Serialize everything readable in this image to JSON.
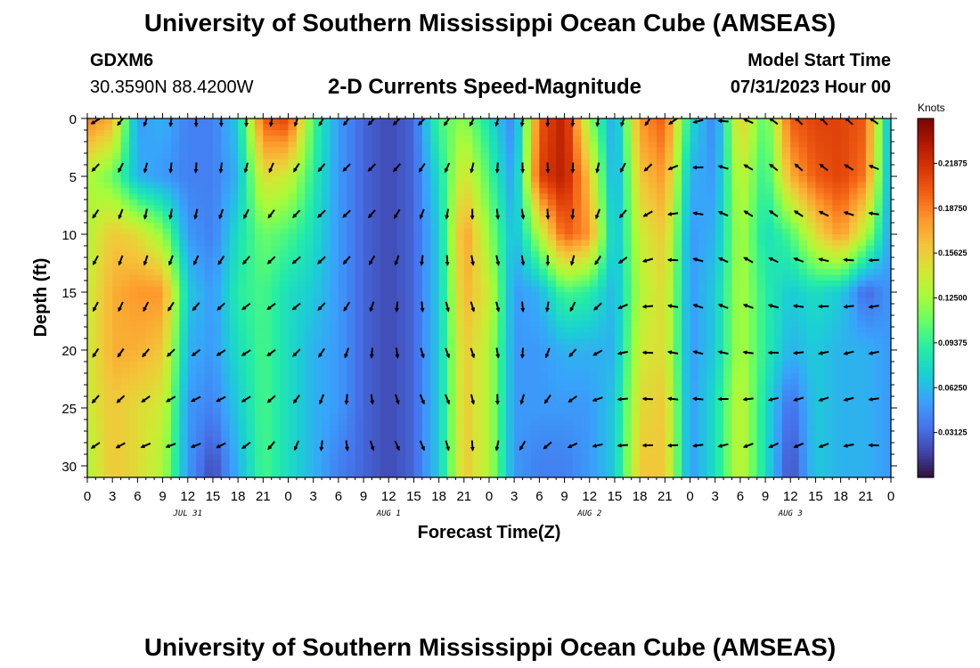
{
  "header": {
    "title": "University of Southern Mississippi Ocean Cube (AMSEAS)",
    "station_id": "GDXM6",
    "station_coords": "30.3590N  88.4200W",
    "chart_title": "2-D Currents Speed-Magnitude",
    "model_start_label": "Model Start Time",
    "model_start_value": "07/31/2023 Hour 00"
  },
  "footer": {
    "title": "University of Southern Mississippi Ocean Cube (AMSEAS)"
  },
  "chart_data": {
    "type": "heatmap",
    "title": "2-D Currents Speed-Magnitude",
    "xlabel": "Forecast Time(Z)",
    "ylabel": "Depth (ft)",
    "x_tick_labels": [
      "0",
      "3",
      "6",
      "9",
      "12",
      "15",
      "18",
      "21",
      "0",
      "3",
      "6",
      "9",
      "12",
      "15",
      "18",
      "21",
      "0",
      "3",
      "6",
      "9",
      "12",
      "15",
      "18",
      "21",
      "0",
      "3",
      "6",
      "9",
      "12",
      "15",
      "18",
      "21",
      "0"
    ],
    "date_labels": [
      {
        "text": "JUL 31",
        "hour": 12
      },
      {
        "text": "AUG 1",
        "hour": 36
      },
      {
        "text": "AUG 2",
        "hour": 60
      },
      {
        "text": "AUG 3",
        "hour": 84
      }
    ],
    "xlim": [
      0,
      96
    ],
    "y_ticks": [
      "0",
      "5",
      "10",
      "15",
      "20",
      "25",
      "30"
    ],
    "ylim": [
      0,
      31
    ],
    "colorbar_label": "Knots",
    "colorbar_ticks": [
      "0.21875",
      "0.18750",
      "0.15625",
      "0.12500",
      "0.09375",
      "0.06250",
      "0.03125"
    ],
    "colorbar_tick_values": [
      0.21875,
      0.1875,
      0.15625,
      0.125,
      0.09375,
      0.0625,
      0.03125
    ],
    "colorbar_range": [
      0,
      0.25
    ],
    "colors": [
      "#30123b",
      "#4145ab",
      "#4675ed",
      "#39a2fc",
      "#1bcfd4",
      "#24eca6",
      "#61fc6c",
      "#a4fc3b",
      "#d1e834",
      "#f3c63a",
      "#fe9b2d",
      "#f36315",
      "#d93806",
      "#b11901",
      "#7a0403"
    ],
    "speed_field": {
      "hours": [
        0,
        3,
        6,
        9,
        12,
        15,
        18,
        21,
        24,
        27,
        30,
        33,
        36,
        39,
        42,
        45,
        48,
        51,
        54,
        57,
        60,
        63,
        66,
        69,
        72,
        75,
        78,
        81,
        84,
        87,
        90,
        93,
        96
      ],
      "depths": [
        0,
        5,
        10,
        15,
        20,
        25,
        30
      ],
      "values": [
        [
          0.19,
          0.17,
          0.05,
          0.06,
          0.04,
          0.04,
          0.07,
          0.2,
          0.21,
          0.1,
          0.05,
          0.03,
          0.02,
          0.03,
          0.1,
          0.12,
          0.08,
          0.04,
          0.2,
          0.23,
          0.12,
          0.05,
          0.18,
          0.2,
          0.08,
          0.04,
          0.16,
          0.1,
          0.2,
          0.21,
          0.21,
          0.2,
          0.05
        ],
        [
          0.13,
          0.11,
          0.06,
          0.05,
          0.04,
          0.04,
          0.06,
          0.15,
          0.14,
          0.09,
          0.05,
          0.03,
          0.02,
          0.03,
          0.08,
          0.15,
          0.1,
          0.05,
          0.21,
          0.23,
          0.16,
          0.05,
          0.16,
          0.18,
          0.06,
          0.05,
          0.14,
          0.09,
          0.17,
          0.2,
          0.21,
          0.19,
          0.05
        ],
        [
          0.13,
          0.16,
          0.15,
          0.12,
          0.05,
          0.04,
          0.08,
          0.11,
          0.1,
          0.08,
          0.05,
          0.03,
          0.02,
          0.03,
          0.07,
          0.18,
          0.12,
          0.06,
          0.13,
          0.2,
          0.18,
          0.06,
          0.14,
          0.16,
          0.05,
          0.06,
          0.13,
          0.08,
          0.1,
          0.15,
          0.18,
          0.13,
          0.05
        ],
        [
          0.14,
          0.17,
          0.18,
          0.18,
          0.07,
          0.05,
          0.09,
          0.1,
          0.08,
          0.07,
          0.05,
          0.03,
          0.02,
          0.03,
          0.07,
          0.17,
          0.14,
          0.05,
          0.06,
          0.1,
          0.09,
          0.06,
          0.13,
          0.15,
          0.05,
          0.07,
          0.13,
          0.09,
          0.07,
          0.08,
          0.07,
          0.03,
          0.05
        ],
        [
          0.14,
          0.17,
          0.17,
          0.16,
          0.06,
          0.05,
          0.08,
          0.1,
          0.08,
          0.06,
          0.05,
          0.03,
          0.02,
          0.03,
          0.07,
          0.16,
          0.13,
          0.05,
          0.05,
          0.06,
          0.06,
          0.06,
          0.14,
          0.15,
          0.05,
          0.07,
          0.13,
          0.09,
          0.06,
          0.07,
          0.06,
          0.06,
          0.05
        ],
        [
          0.14,
          0.16,
          0.15,
          0.14,
          0.05,
          0.04,
          0.07,
          0.1,
          0.08,
          0.06,
          0.05,
          0.03,
          0.02,
          0.03,
          0.07,
          0.16,
          0.13,
          0.05,
          0.05,
          0.05,
          0.05,
          0.07,
          0.15,
          0.16,
          0.05,
          0.08,
          0.14,
          0.08,
          0.03,
          0.07,
          0.06,
          0.06,
          0.05
        ],
        [
          0.13,
          0.16,
          0.15,
          0.13,
          0.05,
          0.02,
          0.06,
          0.1,
          0.08,
          0.06,
          0.04,
          0.03,
          0.02,
          0.03,
          0.07,
          0.16,
          0.13,
          0.05,
          0.04,
          0.04,
          0.05,
          0.07,
          0.16,
          0.16,
          0.05,
          0.08,
          0.14,
          0.08,
          0.02,
          0.07,
          0.06,
          0.06,
          0.05
        ]
      ]
    },
    "vector_hours": [
      1,
      4,
      7,
      10,
      13,
      16,
      19,
      22,
      25,
      28,
      31,
      34,
      37,
      40,
      43,
      46,
      49,
      52,
      55,
      58,
      61,
      64,
      67,
      70,
      73,
      76,
      79,
      82,
      85,
      88,
      91,
      94
    ],
    "vector_depths": [
      0,
      4,
      8,
      12,
      16,
      20,
      24,
      28
    ]
  }
}
